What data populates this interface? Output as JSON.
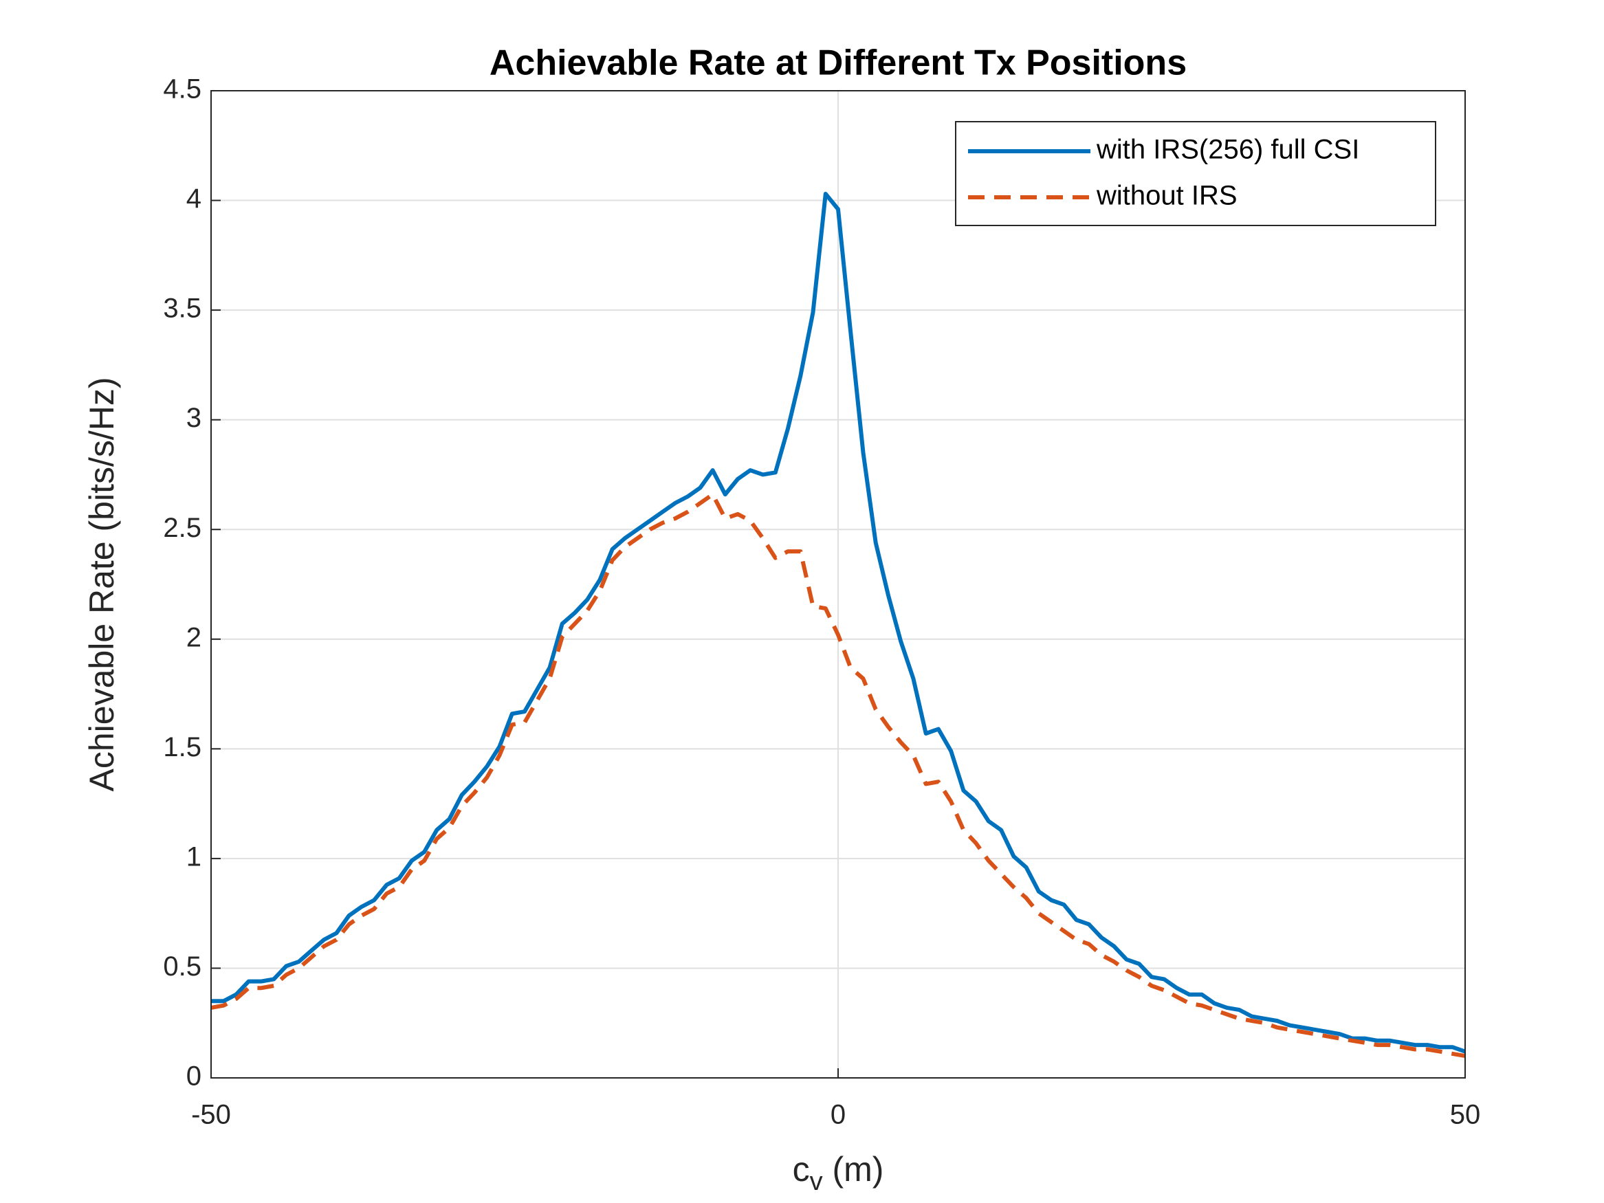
{
  "chart_data": {
    "type": "line",
    "title": "Achievable Rate at Different Tx Positions",
    "xlabel": [
      "c",
      "v",
      " (m)"
    ],
    "ylabel": "Achievable Rate (bits/s/Hz)",
    "x": [
      -50,
      -49,
      -48,
      -47,
      -46,
      -45,
      -44,
      -43,
      -42,
      -41,
      -40,
      -39,
      -38,
      -37,
      -36,
      -35,
      -34,
      -33,
      -32,
      -31,
      -30,
      -29,
      -28,
      -27,
      -26,
      -25,
      -24,
      -23,
      -22,
      -21,
      -20,
      -19,
      -18,
      -17,
      -16,
      -15,
      -14,
      -13,
      -12,
      -11,
      -10,
      -9,
      -8,
      -7,
      -6,
      -5,
      -4,
      -3,
      -2,
      -1,
      0,
      1,
      2,
      3,
      4,
      5,
      6,
      7,
      8,
      9,
      10,
      11,
      12,
      13,
      14,
      15,
      16,
      17,
      18,
      19,
      20,
      21,
      22,
      23,
      24,
      25,
      26,
      27,
      28,
      29,
      30,
      31,
      32,
      33,
      34,
      35,
      36,
      37,
      38,
      39,
      40,
      41,
      42,
      43,
      44,
      45,
      46,
      47,
      48,
      49,
      50
    ],
    "series": [
      {
        "name": "with IRS(256) full CSI",
        "color": "#0072BD",
        "dash": false,
        "values": [
          0.35,
          0.35,
          0.38,
          0.44,
          0.44,
          0.45,
          0.51,
          0.53,
          0.58,
          0.63,
          0.66,
          0.74,
          0.78,
          0.81,
          0.88,
          0.91,
          0.99,
          1.03,
          1.13,
          1.18,
          1.29,
          1.35,
          1.42,
          1.51,
          1.66,
          1.67,
          1.77,
          1.87,
          2.07,
          2.12,
          2.18,
          2.27,
          2.41,
          2.46,
          2.5,
          2.54,
          2.58,
          2.62,
          2.65,
          2.69,
          2.77,
          2.66,
          2.73,
          2.77,
          2.75,
          2.76,
          2.96,
          3.2,
          3.49,
          4.03,
          3.96,
          3.4,
          2.85,
          2.44,
          2.2,
          1.99,
          1.82,
          1.57,
          1.59,
          1.49,
          1.31,
          1.26,
          1.17,
          1.13,
          1.01,
          0.96,
          0.85,
          0.81,
          0.79,
          0.72,
          0.7,
          0.64,
          0.6,
          0.54,
          0.52,
          0.46,
          0.45,
          0.41,
          0.38,
          0.38,
          0.34,
          0.32,
          0.31,
          0.28,
          0.27,
          0.26,
          0.24,
          0.23,
          0.22,
          0.21,
          0.2,
          0.18,
          0.18,
          0.17,
          0.17,
          0.16,
          0.15,
          0.15,
          0.14,
          0.14,
          0.12
        ]
      },
      {
        "name": "without IRS",
        "color": "#D95319",
        "dash": true,
        "values": [
          0.32,
          0.33,
          0.36,
          0.41,
          0.41,
          0.42,
          0.47,
          0.5,
          0.55,
          0.6,
          0.63,
          0.7,
          0.74,
          0.77,
          0.84,
          0.87,
          0.95,
          0.99,
          1.09,
          1.14,
          1.24,
          1.3,
          1.37,
          1.47,
          1.61,
          1.62,
          1.72,
          1.82,
          2.01,
          2.07,
          2.13,
          2.22,
          2.36,
          2.42,
          2.46,
          2.5,
          2.53,
          2.55,
          2.58,
          2.62,
          2.66,
          2.55,
          2.57,
          2.54,
          2.46,
          2.37,
          2.4,
          2.4,
          2.15,
          2.14,
          2.02,
          1.87,
          1.82,
          1.68,
          1.6,
          1.53,
          1.47,
          1.34,
          1.35,
          1.26,
          1.13,
          1.07,
          0.99,
          0.93,
          0.87,
          0.82,
          0.75,
          0.71,
          0.67,
          0.63,
          0.61,
          0.56,
          0.53,
          0.49,
          0.46,
          0.42,
          0.4,
          0.37,
          0.34,
          0.33,
          0.31,
          0.29,
          0.27,
          0.26,
          0.25,
          0.23,
          0.22,
          0.21,
          0.2,
          0.19,
          0.18,
          0.17,
          0.16,
          0.15,
          0.15,
          0.14,
          0.13,
          0.13,
          0.12,
          0.11,
          0.1
        ]
      }
    ],
    "xlim": [
      -50,
      50
    ],
    "xticks": [
      -50,
      0,
      50
    ],
    "ylim": [
      0,
      4.5
    ],
    "yticks": [
      0,
      0.5,
      1,
      1.5,
      2,
      2.5,
      3,
      3.5,
      4,
      4.5
    ],
    "grid": true,
    "legend": "northeast"
  }
}
